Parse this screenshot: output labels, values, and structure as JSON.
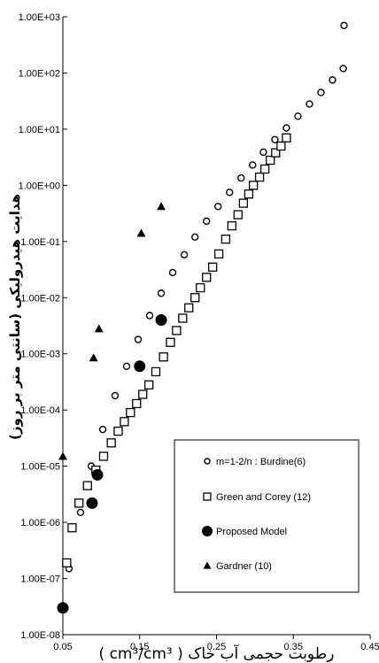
{
  "chart_data": {
    "type": "scatter",
    "title": "",
    "xlabel": "رطوبت حجمی آب خاک",
    "xlabel_unit": "( cm³/cm³ )",
    "ylabel": "هدایت هیدرولیکی (سانتی متر بر روز)",
    "xlim": [
      0.05,
      0.45
    ],
    "ylim": [
      1e-08,
      1000
    ],
    "yscale": "log",
    "grid": false,
    "legend_position": "bottom-right",
    "x_ticks": [
      0.05,
      0.15,
      0.25,
      0.35,
      0.45
    ],
    "x_tick_labels": [
      "0.05",
      "0.15",
      "0.25",
      "0.35",
      "0.45"
    ],
    "y_ticks": [
      1e-08,
      1e-07,
      1e-06,
      1e-05,
      0.0001,
      0.001,
      0.01,
      0.1,
      1,
      10,
      100,
      1000
    ],
    "y_tick_labels": [
      "1.00E-08",
      "1.00E-07",
      "1.00E-06",
      "1.00E-05",
      "1.00E-04",
      "1.00E-03",
      "1.00E-02",
      "1.00E-01",
      "1.00E+00",
      "1.00E+01",
      "1.00E+02",
      "1.00E+03"
    ],
    "series": [
      {
        "name": "m=1-2/n : Burdine(6)",
        "marker": "open-circle",
        "points": [
          [
            0.058,
            1.5e-07
          ],
          [
            0.073,
            1.5e-06
          ],
          [
            0.087,
            1e-05
          ],
          [
            0.102,
            4.5e-05
          ],
          [
            0.118,
            0.00018
          ],
          [
            0.133,
            0.0006
          ],
          [
            0.148,
            0.0018
          ],
          [
            0.163,
            0.0048
          ],
          [
            0.178,
            0.012
          ],
          [
            0.193,
            0.028
          ],
          [
            0.208,
            0.058
          ],
          [
            0.222,
            0.12
          ],
          [
            0.237,
            0.23
          ],
          [
            0.252,
            0.42
          ],
          [
            0.267,
            0.75
          ],
          [
            0.282,
            1.35
          ],
          [
            0.297,
            2.3
          ],
          [
            0.311,
            3.9
          ],
          [
            0.326,
            6.5
          ],
          [
            0.341,
            10.5
          ],
          [
            0.356,
            17
          ],
          [
            0.371,
            28
          ],
          [
            0.386,
            45
          ],
          [
            0.401,
            75
          ],
          [
            0.415,
            120
          ],
          [
            0.416,
            700
          ]
        ]
      },
      {
        "name": "Green and Corey (12)",
        "marker": "open-square",
        "points": [
          [
            0.055,
            1.9e-07
          ],
          [
            0.062,
            8e-07
          ],
          [
            0.071,
            2.2e-06
          ],
          [
            0.082,
            4.5e-06
          ],
          [
            0.093,
            8.5e-06
          ],
          [
            0.103,
            1.5e-05
          ],
          [
            0.113,
            2.6e-05
          ],
          [
            0.122,
            4.2e-05
          ],
          [
            0.13,
            6.2e-05
          ],
          [
            0.138,
            9e-05
          ],
          [
            0.146,
            0.00013
          ],
          [
            0.154,
            0.00019
          ],
          [
            0.162,
            0.00028
          ],
          [
            0.171,
            0.00048
          ],
          [
            0.181,
            0.00088
          ],
          [
            0.19,
            0.0016
          ],
          [
            0.198,
            0.0026
          ],
          [
            0.206,
            0.0043
          ],
          [
            0.214,
            0.0066
          ],
          [
            0.222,
            0.01
          ],
          [
            0.229,
            0.015
          ],
          [
            0.237,
            0.023
          ],
          [
            0.245,
            0.035
          ],
          [
            0.253,
            0.06
          ],
          [
            0.262,
            0.11
          ],
          [
            0.27,
            0.19
          ],
          [
            0.278,
            0.3
          ],
          [
            0.285,
            0.48
          ],
          [
            0.292,
            0.7
          ],
          [
            0.298,
            1.0
          ],
          [
            0.306,
            1.4
          ],
          [
            0.313,
            1.95
          ],
          [
            0.32,
            2.8
          ],
          [
            0.327,
            3.8
          ],
          [
            0.334,
            5.0
          ],
          [
            0.341,
            7.0
          ]
        ]
      },
      {
        "name": "Proposed Model",
        "marker": "filled-circle",
        "points": [
          [
            0.05,
            3e-08
          ],
          [
            0.088,
            2.2e-06
          ],
          [
            0.095,
            7e-06
          ],
          [
            0.15,
            0.0006
          ],
          [
            0.178,
            0.004
          ]
        ]
      },
      {
        "name": "Gardner (10)",
        "marker": "filled-triangle",
        "points": [
          [
            0.05,
            1.5e-05
          ],
          [
            0.09,
            0.00085
          ],
          [
            0.097,
            0.0028
          ],
          [
            0.152,
            0.14
          ],
          [
            0.178,
            0.42
          ]
        ]
      }
    ]
  },
  "colors": {
    "ink": "#000000",
    "background": "#ffffff"
  }
}
